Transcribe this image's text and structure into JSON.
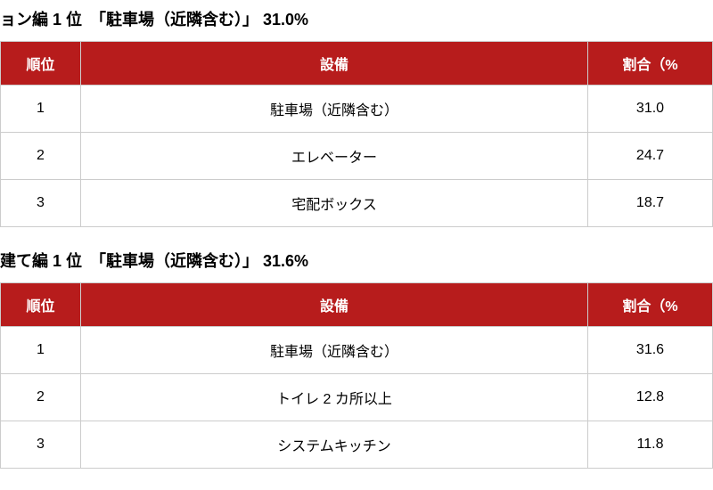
{
  "header_bg": "#b71c1c",
  "header_fg": "#ffffff",
  "border_color": "#cccccc",
  "sections": [
    {
      "title": "ョン編 1 位　「駐車場（近隣含む）」 31.0%",
      "columns": {
        "rank": "順位",
        "facility": "設備",
        "ratio": "割合（%"
      },
      "rows": [
        {
          "rank": "1",
          "facility": "駐車場（近隣含む）",
          "ratio": "31.0"
        },
        {
          "rank": "2",
          "facility": "エレベーター",
          "ratio": "24.7"
        },
        {
          "rank": "3",
          "facility": "宅配ボックス",
          "ratio": "18.7"
        }
      ]
    },
    {
      "title": "建て編 1 位　「駐車場（近隣含む）」 31.6%",
      "columns": {
        "rank": "順位",
        "facility": "設備",
        "ratio": "割合（%"
      },
      "rows": [
        {
          "rank": "1",
          "facility": "駐車場（近隣含む）",
          "ratio": "31.6"
        },
        {
          "rank": "2",
          "facility": "トイレ 2 カ所以上",
          "ratio": "12.8"
        },
        {
          "rank": "3",
          "facility": "システムキッチン",
          "ratio": "11.8"
        }
      ]
    }
  ]
}
